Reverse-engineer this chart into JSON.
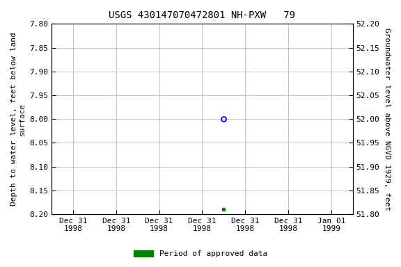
{
  "title": "USGS 430147070472801 NH-PXW   79",
  "ylabel_left": "Depth to water level, feet below land\nsurface",
  "ylabel_right": "Groundwater level above NGVD 1929, feet",
  "ylim_left": [
    7.8,
    8.2
  ],
  "ylim_right": [
    51.8,
    52.2
  ],
  "yticks_left": [
    7.8,
    7.85,
    7.9,
    7.95,
    8.0,
    8.05,
    8.1,
    8.15,
    8.2
  ],
  "yticks_right": [
    51.8,
    51.85,
    51.9,
    51.95,
    52.0,
    52.05,
    52.1,
    52.15,
    52.2
  ],
  "point_open_x": 4.0,
  "point_open_y": 8.0,
  "point_filled_x": 4.0,
  "point_filled_y": 8.19,
  "open_marker_color": "blue",
  "filled_marker_color": "green",
  "grid_color": "#bbbbbb",
  "background_color": "white",
  "legend_label": "Period of approved data",
  "legend_color": "green",
  "title_fontsize": 10,
  "label_fontsize": 8,
  "tick_fontsize": 8,
  "font_family": "DejaVu Sans Mono",
  "xlim": [
    0,
    7
  ],
  "xtick_positions": [
    0.5,
    1.5,
    2.5,
    3.5,
    4.5,
    5.5,
    6.5
  ],
  "xtick_labels": [
    "Dec 31\n1998",
    "Dec 31\n1998",
    "Dec 31\n1998",
    "Dec 31\n1998",
    "Dec 31\n1998",
    "Dec 31\n1998",
    "Jan 01\n1999"
  ]
}
